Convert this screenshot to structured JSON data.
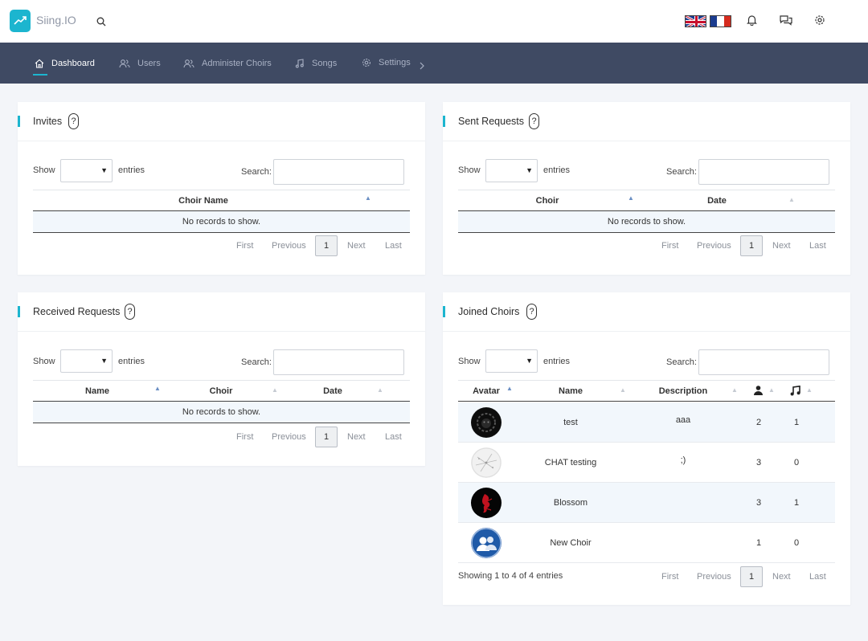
{
  "topbar": {
    "app_name": "Siing.IO",
    "icons": [
      "trend-icon",
      "search-icon",
      "uk-flag-icon",
      "fr-flag-icon",
      "bell-icon",
      "chat-icon",
      "gear-icon"
    ]
  },
  "nav": {
    "items": [
      {
        "label": "Dashboard",
        "icon": "home-icon"
      },
      {
        "label": "Users",
        "icon": "users-icon"
      },
      {
        "label": "Administer Choirs",
        "icon": "users-icon"
      },
      {
        "label": "Songs",
        "icon": "music-icon"
      },
      {
        "label": "Settings",
        "icon": "gear-icon"
      }
    ]
  },
  "common": {
    "show": "Show",
    "entries": "entries",
    "search": "Search:",
    "no_records": "No records to show.",
    "first": "First",
    "previous": "Previous",
    "page": "1",
    "next": "Next",
    "last": "Last",
    "help": "?"
  },
  "invites": {
    "title": "Invites",
    "columns": [
      "Choir Name"
    ]
  },
  "sent_requests": {
    "title": "Sent Requests",
    "columns": [
      "Choir",
      "Date"
    ]
  },
  "received_requests": {
    "title": "Received Requests",
    "columns": [
      "Name",
      "Choir",
      "Date"
    ]
  },
  "joined_choirs": {
    "title": "Joined Choirs",
    "columns": [
      "Avatar",
      "Name",
      "Description",
      "members-icon",
      "songs-icon"
    ],
    "rows": [
      {
        "name": "test",
        "description": "aaa",
        "members": "2",
        "songs": "1",
        "avatar": "lion-avatar"
      },
      {
        "name": "CHAT testing",
        "description": ";)",
        "members": "3",
        "songs": "0",
        "avatar": "sphere-avatar"
      },
      {
        "name": "Blossom",
        "description": "",
        "members": "3",
        "songs": "1",
        "avatar": "red-figure-avatar"
      },
      {
        "name": "New Choir",
        "description": "",
        "members": "1",
        "songs": "0",
        "avatar": "group-avatar"
      }
    ],
    "showing": "Showing 1 to 4 of 4 entries"
  },
  "colors": {
    "accent": "#1cb5cf",
    "nav_bg": "#3f4a63",
    "page_bg": "#f3f5f9"
  }
}
